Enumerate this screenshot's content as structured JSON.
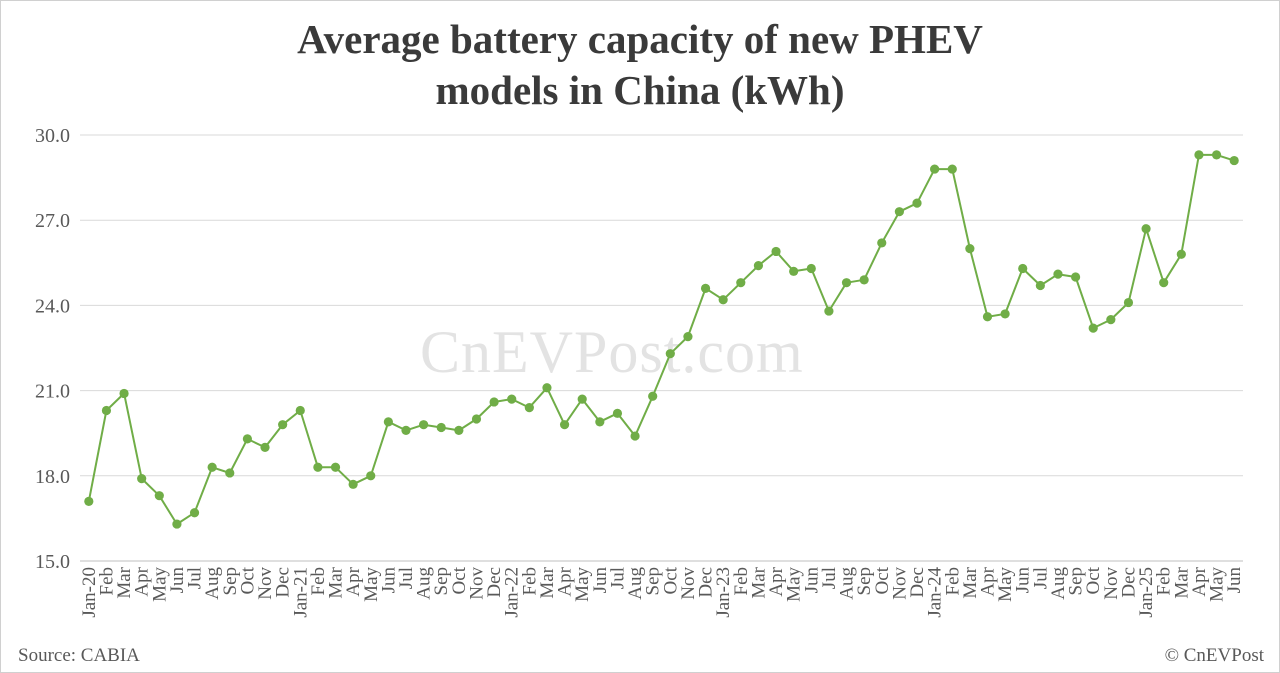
{
  "chart_data": {
    "type": "line",
    "title_lines": [
      "Average battery capacity of new PHEV",
      "models in China (kWh)"
    ],
    "watermark": "CnEVPost.com",
    "source": "Source: CABIA",
    "copyright": "© CnEVPost",
    "ylim": [
      15.0,
      30.0
    ],
    "yticks": [
      "15.0",
      "18.0",
      "21.0",
      "24.0",
      "27.0",
      "30.0"
    ],
    "grid": true,
    "line_color": "#70ad47",
    "categories": [
      "Jan-20",
      "Feb",
      "Mar",
      "Apr",
      "May",
      "Jun",
      "Jul",
      "Aug",
      "Sep",
      "Oct",
      "Nov",
      "Dec",
      "Jan-21",
      "Feb",
      "Mar",
      "Apr",
      "May",
      "Jun",
      "Jul",
      "Aug",
      "Sep",
      "Oct",
      "Nov",
      "Dec",
      "Jan-22",
      "Feb",
      "Mar",
      "Apr",
      "May",
      "Jun",
      "Jul",
      "Aug",
      "Sep",
      "Oct",
      "Nov",
      "Dec",
      "Jan-23",
      "Feb",
      "Mar",
      "Apr",
      "May",
      "Jun",
      "Jul",
      "Aug",
      "Sep",
      "Oct",
      "Nov",
      "Dec",
      "Jan-24",
      "Feb",
      "Mar",
      "Apr",
      "May",
      "Jun",
      "Jul",
      "Aug",
      "Sep",
      "Oct",
      "Nov",
      "Dec",
      "Jan-25",
      "Feb",
      "Mar",
      "Apr",
      "May",
      "Jun"
    ],
    "values": [
      17.1,
      20.3,
      20.9,
      17.9,
      17.3,
      16.3,
      16.7,
      18.3,
      18.1,
      19.3,
      19.0,
      19.8,
      20.3,
      18.3,
      18.3,
      17.7,
      18.0,
      19.9,
      19.6,
      19.8,
      19.7,
      19.6,
      20.0,
      20.6,
      20.7,
      20.4,
      21.1,
      19.8,
      20.7,
      19.9,
      20.2,
      19.4,
      20.8,
      22.3,
      22.9,
      24.6,
      24.2,
      24.8,
      25.4,
      25.9,
      25.2,
      25.3,
      23.8,
      24.8,
      24.9,
      26.2,
      27.3,
      27.6,
      28.8,
      28.8,
      26.0,
      23.6,
      23.7,
      25.3,
      24.7,
      25.1,
      25.0,
      23.2,
      23.5,
      24.1,
      26.7,
      24.8,
      25.8,
      29.3,
      29.3,
      29.1
    ]
  }
}
